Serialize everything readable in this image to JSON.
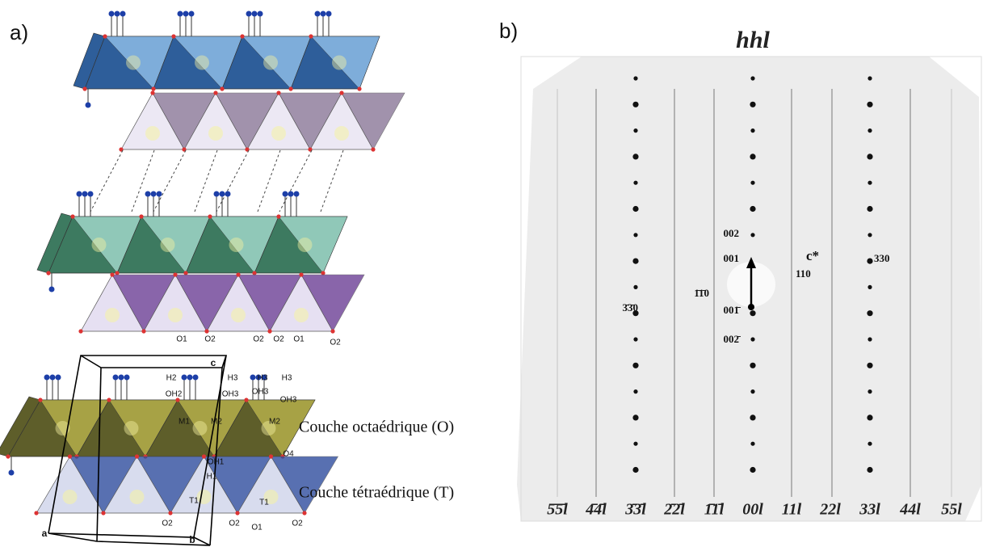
{
  "panel_a": {
    "label": "a)",
    "atom_labels": [
      "O1",
      "O2",
      "O2",
      "O2",
      "O1",
      "O2",
      "H2",
      "H3",
      "H3",
      "H3",
      "OH2",
      "OH3",
      "OH3",
      "OH3",
      "M1",
      "M2",
      "M2",
      "OH1",
      "O4",
      "H1",
      "T1",
      "T1",
      "O2",
      "O2",
      "O1",
      "O2"
    ],
    "cell_axes": [
      "a",
      "b",
      "c"
    ],
    "layer_labels": [
      "Couche octaédrique (O)",
      "Couche tétraédrique (T)"
    ]
  },
  "panel_b": {
    "label": "b)",
    "title": "hhl",
    "reflection_labels": [
      "002",
      "001",
      "110",
      "1̄1̄0",
      "3̄3̄0",
      "330",
      "001̄",
      "002̄"
    ],
    "vector_label": "c*",
    "row_labels": [
      "5̄5̄l",
      "4̄4̄l",
      "3̄3̄l",
      "2̄2̄l",
      "1̄1̄l",
      "00l",
      "11l",
      "22l",
      "33l",
      "44l",
      "55l"
    ]
  }
}
